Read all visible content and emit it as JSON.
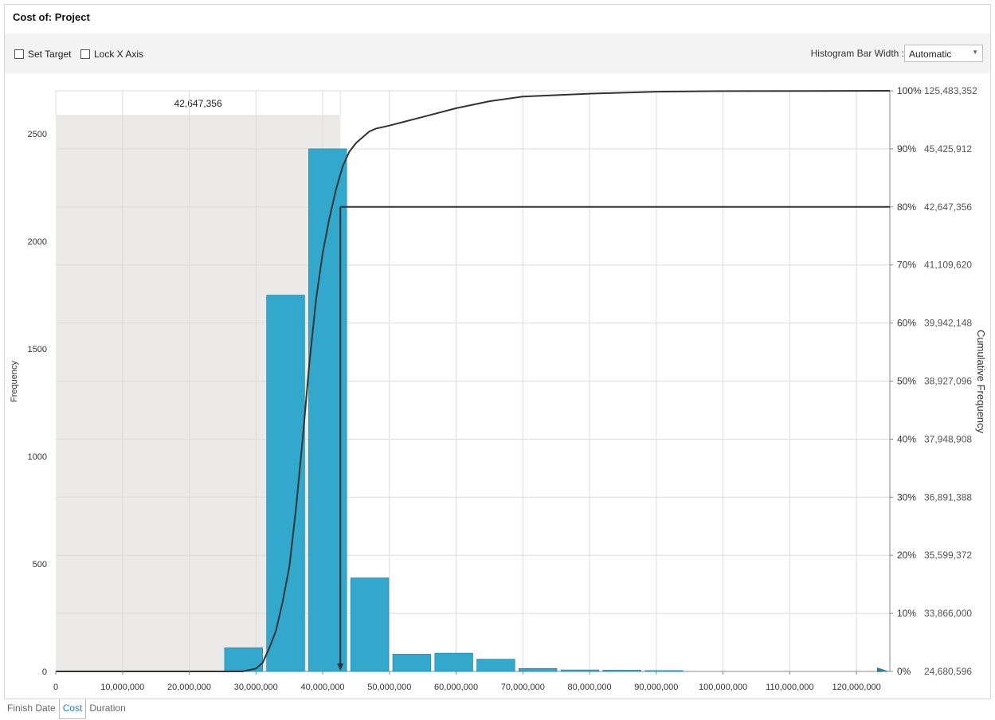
{
  "window": {
    "title": "Cost of: Project"
  },
  "toolbar": {
    "set_target_label": "Set Target",
    "lock_x_axis_label": "Lock X Axis",
    "histogram_bar_width_label": "Histogram Bar Width :",
    "histogram_bar_width_value": "Automatic"
  },
  "tabs": [
    {
      "label": "Finish Date"
    },
    {
      "label": "Cost"
    },
    {
      "label": "Duration"
    }
  ],
  "colors": {
    "bar": "#31a8cc",
    "bar_edge": "#1d7f9e",
    "curve": "#333333",
    "shade": "#ebeae8",
    "grid": "#dcdcdc"
  },
  "chart_data": {
    "type": "bar",
    "ylabel": "Frequency",
    "y2label": "Cumulative Frequency",
    "xlim": [
      0,
      125000000
    ],
    "ylim": [
      0,
      2700
    ],
    "x_ticks": [
      0,
      10000000,
      20000000,
      30000000,
      40000000,
      50000000,
      60000000,
      70000000,
      80000000,
      90000000,
      100000000,
      110000000,
      120000000
    ],
    "x_tick_labels": [
      "0",
      "10,000,000",
      "20,000,000",
      "30,000,000",
      "40,000,000",
      "50,000,000",
      "60,000,000",
      "70,000,000",
      "80,000,000",
      "90,000,000",
      "100,000,000",
      "110,000,000",
      "120,000,000"
    ],
    "y_ticks": [
      0,
      500,
      1000,
      1500,
      2000,
      2500
    ],
    "y_tick_labels": [
      "0",
      "500",
      "1000",
      "1500",
      "2000",
      "2500"
    ],
    "right_axis_labels": [
      {
        "pct": 100,
        "pct_label": "100%",
        "value_label": "125,483,352"
      },
      {
        "pct": 90,
        "pct_label": "90%",
        "value_label": "45,425,912"
      },
      {
        "pct": 80,
        "pct_label": "80%",
        "value_label": "42,647,356"
      },
      {
        "pct": 70,
        "pct_label": "70%",
        "value_label": "41,109,620"
      },
      {
        "pct": 60,
        "pct_label": "60%",
        "value_label": "39,942,148"
      },
      {
        "pct": 50,
        "pct_label": "50%",
        "value_label": "38,927,096"
      },
      {
        "pct": 40,
        "pct_label": "40%",
        "value_label": "37,948,908"
      },
      {
        "pct": 30,
        "pct_label": "30%",
        "value_label": "36,891,388"
      },
      {
        "pct": 20,
        "pct_label": "20%",
        "value_label": "35,599,372"
      },
      {
        "pct": 10,
        "pct_label": "10%",
        "value_label": "33,866,000"
      },
      {
        "pct": 0,
        "pct_label": "0%",
        "value_label": "24,680,596"
      }
    ],
    "bars": [
      {
        "x0": 25300000,
        "x1": 31000000,
        "y": 110
      },
      {
        "x0": 31600000,
        "x1": 37300000,
        "y": 1750
      },
      {
        "x0": 37900000,
        "x1": 43600000,
        "y": 2430
      },
      {
        "x0": 44200000,
        "x1": 49900000,
        "y": 435
      },
      {
        "x0": 50500000,
        "x1": 56200000,
        "y": 80
      },
      {
        "x0": 56800000,
        "x1": 62500000,
        "y": 85
      },
      {
        "x0": 63100000,
        "x1": 68800000,
        "y": 57
      },
      {
        "x0": 69400000,
        "x1": 75100000,
        "y": 14
      },
      {
        "x0": 75700000,
        "x1": 81400000,
        "y": 7
      },
      {
        "x0": 82000000,
        "x1": 87700000,
        "y": 6
      },
      {
        "x0": 88300000,
        "x1": 94000000,
        "y": 4
      }
    ],
    "cumulative_curve": [
      [
        0,
        0
      ],
      [
        28000000,
        0
      ],
      [
        30000000,
        0.5
      ],
      [
        31000000,
        1.5
      ],
      [
        32000000,
        4
      ],
      [
        33000000,
        7
      ],
      [
        34000000,
        12
      ],
      [
        35000000,
        18
      ],
      [
        36000000,
        28
      ],
      [
        37000000,
        40
      ],
      [
        38000000,
        53
      ],
      [
        39000000,
        64
      ],
      [
        40000000,
        72
      ],
      [
        41000000,
        78
      ],
      [
        42000000,
        83
      ],
      [
        43000000,
        87
      ],
      [
        44000000,
        89.5
      ],
      [
        45000000,
        91
      ],
      [
        46000000,
        92
      ],
      [
        47000000,
        93
      ],
      [
        48000000,
        93.5
      ],
      [
        50000000,
        94
      ],
      [
        55000000,
        95.5
      ],
      [
        60000000,
        97
      ],
      [
        65000000,
        98.2
      ],
      [
        70000000,
        99
      ],
      [
        80000000,
        99.5
      ],
      [
        90000000,
        99.85
      ],
      [
        100000000,
        99.95
      ],
      [
        125000000,
        100
      ]
    ],
    "target": {
      "value": 42647356,
      "value_label": "42,647,356",
      "pct": 80
    }
  }
}
